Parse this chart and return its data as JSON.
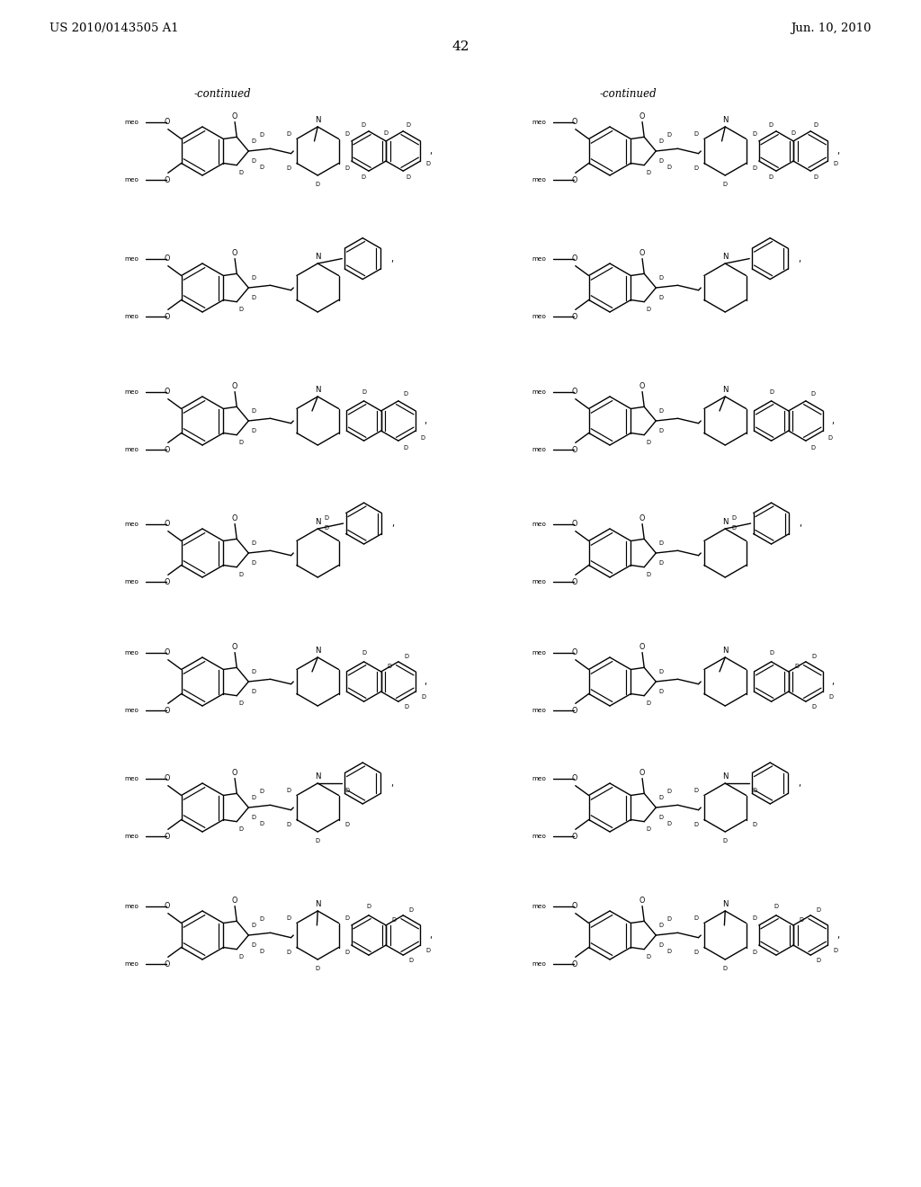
{
  "header_left": "US 2010/0143505 A1",
  "header_right": "Jun. 10, 2010",
  "page_number": "42",
  "continued": "-continued",
  "bg_color": "#ffffff",
  "line_color": "#000000",
  "text_color": "#000000"
}
